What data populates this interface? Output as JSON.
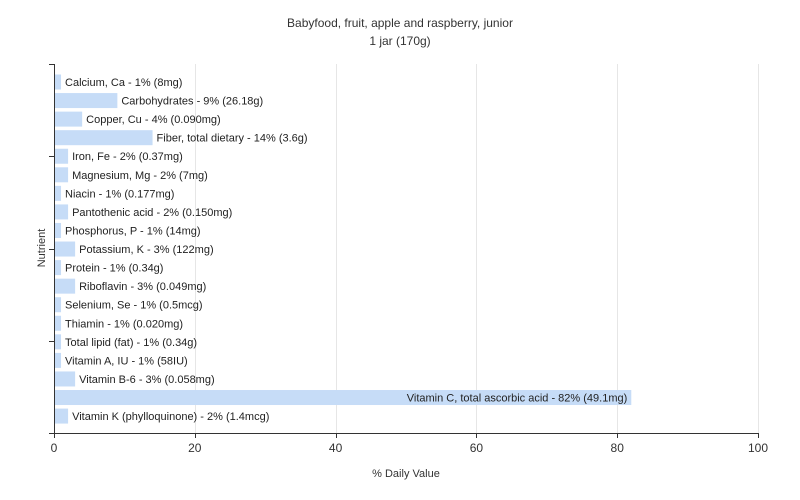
{
  "chart_data": {
    "type": "bar",
    "orientation": "horizontal",
    "title": "Babyfood, fruit, apple and raspberry,  junior",
    "subtitle": "1 jar (170g)",
    "xlabel": "% Daily Value",
    "ylabel": "Nutrient",
    "xlim": [
      0,
      100
    ],
    "xticks": [
      0,
      20,
      40,
      60,
      80,
      100
    ],
    "grid": true,
    "bar_color": "#c6dcf7",
    "categories": [
      "Calcium, Ca",
      "Carbohydrates",
      "Copper, Cu",
      "Fiber, total dietary",
      "Iron, Fe",
      "Magnesium, Mg",
      "Niacin",
      "Pantothenic acid",
      "Phosphorus, P",
      "Potassium, K",
      "Protein",
      "Riboflavin",
      "Selenium, Se",
      "Thiamin",
      "Total lipid (fat)",
      "Vitamin A, IU",
      "Vitamin B-6",
      "Vitamin C, total ascorbic acid",
      "Vitamin K (phylloquinone)"
    ],
    "values": [
      1,
      9,
      4,
      14,
      2,
      2,
      1,
      2,
      1,
      3,
      1,
      3,
      1,
      1,
      1,
      1,
      3,
      82,
      2
    ],
    "labels": [
      "Calcium, Ca - 1% (8mg)",
      "Carbohydrates - 9% (26.18g)",
      "Copper, Cu - 4% (0.090mg)",
      "Fiber, total dietary - 14% (3.6g)",
      "Iron, Fe - 2% (0.37mg)",
      "Magnesium, Mg - 2% (7mg)",
      "Niacin - 1% (0.177mg)",
      "Pantothenic acid - 2% (0.150mg)",
      "Phosphorus, P - 1% (14mg)",
      "Potassium, K - 3% (122mg)",
      "Protein - 1% (0.34g)",
      "Riboflavin - 3% (0.049mg)",
      "Selenium, Se - 1% (0.5mcg)",
      "Thiamin - 1% (0.020mg)",
      "Total lipid (fat) - 1% (0.34g)",
      "Vitamin A, IU - 1% (58IU)",
      "Vitamin B-6 - 3% (0.058mg)",
      "Vitamin C, total ascorbic acid - 82% (49.1mg)",
      "Vitamin K (phylloquinone) - 2% (1.4mcg)"
    ]
  }
}
